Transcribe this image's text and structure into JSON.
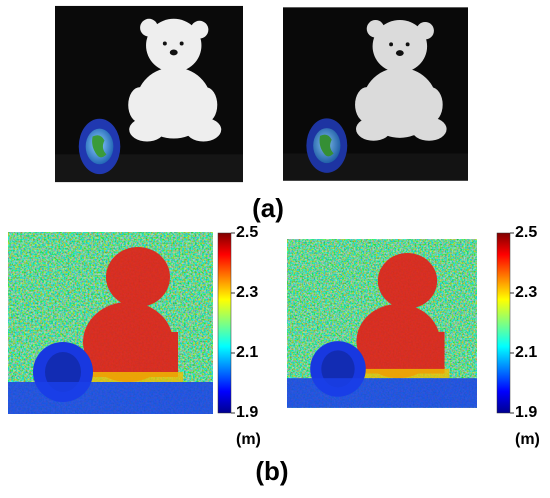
{
  "panel_a": {
    "label": "(a)"
  },
  "panel_b": {
    "label": "(b)",
    "colorbars": [
      {
        "lim": [
          1.9,
          2.5
        ],
        "ticks": [
          1.9,
          2.1,
          2.3,
          2.5
        ],
        "unit": "(m)"
      },
      {
        "lim": [
          1.9,
          2.5
        ],
        "ticks": [
          1.9,
          2.1,
          2.3,
          2.5
        ],
        "unit": "(m)"
      }
    ]
  }
}
